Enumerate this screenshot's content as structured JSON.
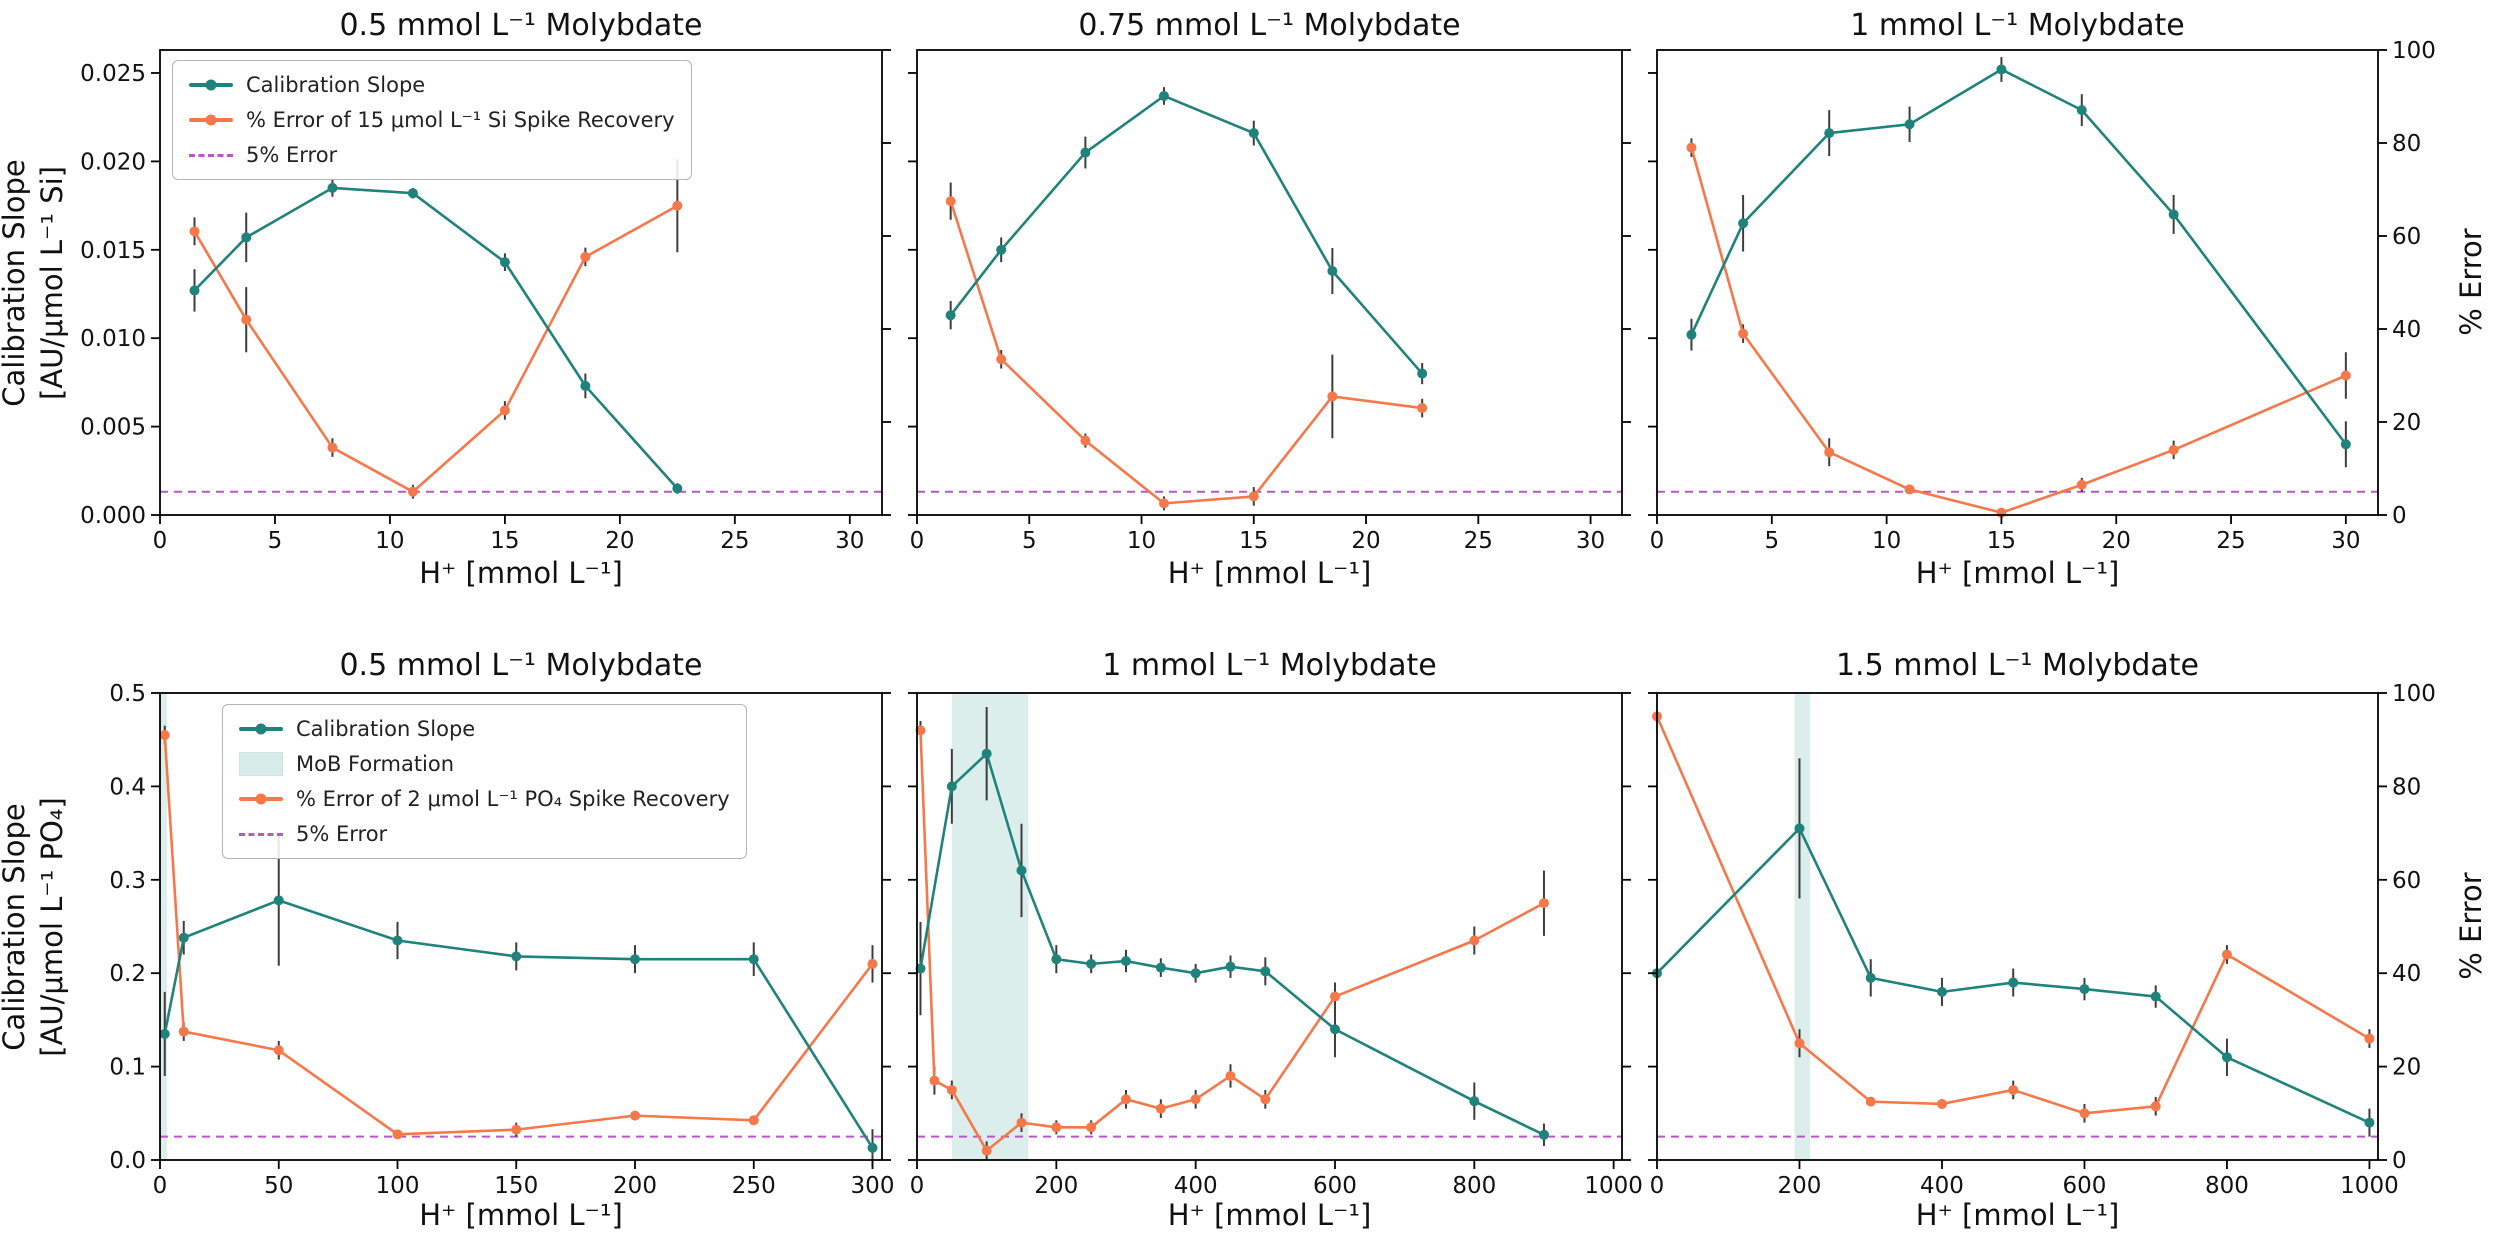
{
  "figure": {
    "colors": {
      "calibration_slope": "#1f837b",
      "spike_error": "#f5784b",
      "five_percent": "#bb55cc",
      "mob_formation": "#bfe0dc",
      "error_bar": "#3d3d3d",
      "axis": "#000000"
    }
  },
  "ylabels": {
    "row1_line1": "Calibration Slope",
    "row1_line2": "[AU/μmol L⁻¹ Si]",
    "row2_line1": "Calibration Slope",
    "row2_line2": "[AU/μmol L⁻¹ PO₄]",
    "right": "% Error"
  },
  "legends": [
    {
      "items": [
        {
          "label": "Calibration Slope",
          "swatch": "line-slope"
        },
        {
          "label": "% Error of 15 μmol L⁻¹  Si Spike Recovery",
          "swatch": "line-error"
        },
        {
          "label": "5% Error",
          "swatch": "dashed"
        }
      ]
    },
    {
      "items": [
        {
          "label": "Calibration Slope",
          "swatch": "line-slope"
        },
        {
          "label": "MoB Formation",
          "swatch": "patch"
        },
        {
          "label": "% Error of 2 μmol L⁻¹ PO₄ Spike Recovery",
          "swatch": "line-error"
        },
        {
          "label": "5% Error",
          "swatch": "dashed"
        }
      ]
    }
  ],
  "chart_data": [
    {
      "type": "line",
      "title": "0.5 mmol L⁻¹ Molybdate",
      "xlabel": "H⁺ [mmol L⁻¹]",
      "xlim": [
        0,
        31.4
      ],
      "xticks": [
        0,
        5,
        10,
        15,
        20,
        25,
        30
      ],
      "ylim_left": [
        0,
        0.0263
      ],
      "yticks_left": {
        "values": [
          0,
          0.005,
          0.01,
          0.015,
          0.02,
          0.025
        ],
        "labels": [
          "0.000",
          "0.005",
          "0.010",
          "0.015",
          "0.020",
          "0.025"
        ]
      },
      "left_tick_labels_visible": true,
      "ylim_right": [
        0,
        100
      ],
      "yticks_right": [
        0,
        20,
        40,
        60,
        80,
        100
      ],
      "right_tick_labels_visible": false,
      "five_percent_line": 5,
      "mob_region": null,
      "series": [
        {
          "name": "Calibration Slope",
          "axis": "left",
          "x": [
            1.5,
            3.75,
            7.5,
            11,
            15,
            18.5,
            22.5
          ],
          "y": [
            0.0127,
            0.0157,
            0.0185,
            0.0182,
            0.0143,
            0.0073,
            0.0015
          ],
          "yerr": [
            0.0012,
            0.0014,
            0.0005,
            0.0003,
            0.0005,
            0.0007,
            0.0003
          ]
        },
        {
          "name": "% Error of 15 umol/L Si Spike Recovery",
          "axis": "right",
          "x": [
            1.5,
            3.75,
            7.5,
            11,
            15,
            18.5,
            22.5
          ],
          "y": [
            61,
            42,
            14.5,
            5,
            22.5,
            55.5,
            66.5
          ],
          "yerr": [
            3,
            7,
            2,
            1.5,
            2,
            2,
            10
          ]
        }
      ]
    },
    {
      "type": "line",
      "title": "0.75 mmol L⁻¹ Molybdate",
      "xlabel": "H⁺ [mmol L⁻¹]",
      "xlim": [
        0,
        31.4
      ],
      "xticks": [
        0,
        5,
        10,
        15,
        20,
        25,
        30
      ],
      "ylim_left": [
        0,
        0.0263
      ],
      "yticks_left": {
        "values": [
          0,
          0.005,
          0.01,
          0.015,
          0.02,
          0.025
        ],
        "labels": [
          "0.000",
          "0.005",
          "0.010",
          "0.015",
          "0.020",
          "0.025"
        ]
      },
      "left_tick_labels_visible": false,
      "ylim_right": [
        0,
        100
      ],
      "yticks_right": [
        0,
        20,
        40,
        60,
        80,
        100
      ],
      "right_tick_labels_visible": false,
      "five_percent_line": 5,
      "mob_region": null,
      "series": [
        {
          "name": "Calibration Slope",
          "axis": "left",
          "x": [
            1.5,
            3.75,
            7.5,
            11,
            15,
            18.5,
            22.5
          ],
          "y": [
            0.0113,
            0.015,
            0.0205,
            0.0237,
            0.0216,
            0.0138,
            0.008
          ],
          "yerr": [
            0.0008,
            0.0007,
            0.0009,
            0.0005,
            0.0007,
            0.0013,
            0.0006
          ]
        },
        {
          "name": "% Error of 15 umol/L Si Spike Recovery",
          "axis": "right",
          "x": [
            1.5,
            3.75,
            7.5,
            11,
            15,
            18.5,
            22.5
          ],
          "y": [
            67.5,
            33.5,
            16,
            2.5,
            4,
            25.5,
            23
          ],
          "yerr": [
            4,
            2,
            1.5,
            1.5,
            2,
            9,
            2
          ]
        }
      ]
    },
    {
      "type": "line",
      "title": "1 mmol L⁻¹ Molybdate",
      "xlabel": "H⁺ [mmol L⁻¹]",
      "xlim": [
        0,
        31.4
      ],
      "xticks": [
        0,
        5,
        10,
        15,
        20,
        25,
        30
      ],
      "ylim_left": [
        0,
        0.0263
      ],
      "yticks_left": {
        "values": [
          0,
          0.005,
          0.01,
          0.015,
          0.02,
          0.025
        ],
        "labels": [
          "0.000",
          "0.005",
          "0.010",
          "0.015",
          "0.020",
          "0.025"
        ]
      },
      "left_tick_labels_visible": false,
      "ylim_right": [
        0,
        100
      ],
      "yticks_right": [
        0,
        20,
        40,
        60,
        80,
        100
      ],
      "right_tick_labels_visible": true,
      "five_percent_line": 5,
      "mob_region": null,
      "series": [
        {
          "name": "Calibration Slope",
          "axis": "left",
          "x": [
            1.5,
            3.75,
            7.5,
            11,
            15,
            18.5,
            22.5,
            30
          ],
          "y": [
            0.0102,
            0.0165,
            0.0216,
            0.0221,
            0.0252,
            0.0229,
            0.017,
            0.004
          ],
          "yerr": [
            0.0009,
            0.0016,
            0.0013,
            0.001,
            0.0007,
            0.0009,
            0.0011,
            0.0013
          ]
        },
        {
          "name": "% Error of 15 umol/L Si Spike Recovery",
          "axis": "right",
          "x": [
            1.5,
            3.75,
            7.5,
            11,
            15,
            18.5,
            22.5,
            30
          ],
          "y": [
            79,
            39,
            13.5,
            5.5,
            0.5,
            6.5,
            14,
            30
          ],
          "yerr": [
            2,
            2,
            3,
            1,
            1,
            1.5,
            2,
            5
          ]
        }
      ]
    },
    {
      "type": "line",
      "title": "0.5 mmol L⁻¹ Molybdate",
      "xlabel": "H⁺ [mmol L⁻¹]",
      "xlim": [
        0,
        304
      ],
      "xticks": [
        0,
        50,
        100,
        150,
        200,
        250,
        300
      ],
      "ylim_left": [
        0,
        0.5
      ],
      "yticks_left": {
        "values": [
          0,
          0.1,
          0.2,
          0.3,
          0.4,
          0.5
        ],
        "labels": [
          "0.0",
          "0.1",
          "0.2",
          "0.3",
          "0.4",
          "0.5"
        ]
      },
      "left_tick_labels_visible": true,
      "ylim_right": [
        0,
        100
      ],
      "yticks_right": [
        0,
        20,
        40,
        60,
        80,
        100
      ],
      "right_tick_labels_visible": false,
      "five_percent_line": 5,
      "mob_region": [
        0,
        3
      ],
      "series": [
        {
          "name": "Calibration Slope",
          "axis": "left",
          "x": [
            2,
            10,
            50,
            100,
            150,
            200,
            250,
            300
          ],
          "y": [
            0.135,
            0.238,
            0.278,
            0.235,
            0.218,
            0.215,
            0.215,
            0.013
          ],
          "yerr": [
            0.045,
            0.018,
            0.07,
            0.02,
            0.015,
            0.015,
            0.018,
            0.02
          ]
        },
        {
          "name": "% Error of 2 umol/L PO4 Spike Recovery",
          "axis": "right",
          "x": [
            2,
            10,
            50,
            100,
            150,
            200,
            250,
            300
          ],
          "y": [
            91,
            27.5,
            23.5,
            5.5,
            6.5,
            9.5,
            8.5,
            42
          ],
          "yerr": [
            2,
            2,
            2,
            1,
            1.5,
            1,
            1,
            4
          ]
        }
      ]
    },
    {
      "type": "line",
      "title": "1 mmol L⁻¹ Molybdate",
      "xlabel": "H⁺ [mmol L⁻¹]",
      "xlim": [
        0,
        1012
      ],
      "xticks": [
        0,
        200,
        400,
        600,
        800,
        1000
      ],
      "ylim_left": [
        0,
        0.5
      ],
      "yticks_left": {
        "values": [
          0,
          0.1,
          0.2,
          0.3,
          0.4,
          0.5
        ],
        "labels": [
          "0.0",
          "0.1",
          "0.2",
          "0.3",
          "0.4",
          "0.5"
        ]
      },
      "left_tick_labels_visible": false,
      "ylim_right": [
        0,
        100
      ],
      "yticks_right": [
        0,
        20,
        40,
        60,
        80,
        100
      ],
      "right_tick_labels_visible": false,
      "five_percent_line": 5,
      "mob_region": [
        50,
        160
      ],
      "series": [
        {
          "name": "Calibration Slope",
          "axis": "left",
          "x": [
            5,
            50,
            100,
            150,
            200,
            250,
            300,
            350,
            400,
            450,
            500,
            600,
            800,
            900
          ],
          "y": [
            0.205,
            0.4,
            0.435,
            0.31,
            0.215,
            0.21,
            0.213,
            0.206,
            0.2,
            0.207,
            0.202,
            0.14,
            0.063,
            0.027
          ],
          "yerr": [
            0.05,
            0.04,
            0.05,
            0.05,
            0.015,
            0.01,
            0.012,
            0.01,
            0.01,
            0.012,
            0.015,
            0.03,
            0.02,
            0.012
          ]
        },
        {
          "name": "% Error of 2 umol/L PO4 Spike Recovery",
          "axis": "right",
          "x": [
            5,
            25,
            50,
            100,
            150,
            200,
            250,
            300,
            350,
            400,
            450,
            500,
            600,
            800,
            900
          ],
          "y": [
            92,
            17,
            15,
            2,
            8,
            7,
            7,
            13,
            11,
            13,
            18,
            13,
            35,
            47,
            55
          ],
          "yerr": [
            2,
            3,
            2,
            2,
            2,
            1.5,
            1.5,
            2,
            2,
            2,
            2.5,
            2,
            3,
            3,
            7
          ]
        }
      ]
    },
    {
      "type": "line",
      "title": "1.5 mmol L⁻¹ Molybdate",
      "xlabel": "H⁺ [mmol L⁻¹]",
      "xlim": [
        0,
        1012
      ],
      "xticks": [
        0,
        200,
        400,
        600,
        800,
        1000
      ],
      "ylim_left": [
        0,
        0.5
      ],
      "yticks_left": {
        "values": [
          0,
          0.1,
          0.2,
          0.3,
          0.4,
          0.5
        ],
        "labels": [
          "0.0",
          "0.1",
          "0.2",
          "0.3",
          "0.4",
          "0.5"
        ]
      },
      "left_tick_labels_visible": false,
      "ylim_right": [
        0,
        100
      ],
      "yticks_right": [
        0,
        20,
        40,
        60,
        80,
        100
      ],
      "right_tick_labels_visible": true,
      "five_percent_line": 5,
      "mob_region": [
        193,
        215
      ],
      "series": [
        {
          "name": "Calibration Slope",
          "axis": "left",
          "x": [
            0,
            200,
            300,
            400,
            500,
            600,
            700,
            800,
            1000
          ],
          "y": [
            0.2,
            0.355,
            0.195,
            0.18,
            0.19,
            0.183,
            0.175,
            0.11,
            0.04
          ],
          "yerr": [
            0,
            0.075,
            0.02,
            0.015,
            0.015,
            0.012,
            0.012,
            0.02,
            0.015
          ]
        },
        {
          "name": "% Error of 2 umol/L PO4 Spike Recovery",
          "axis": "right",
          "x": [
            0,
            200,
            300,
            400,
            500,
            600,
            700,
            800,
            1000
          ],
          "y": [
            95,
            25,
            12.5,
            12,
            15,
            10,
            11.5,
            44,
            26
          ],
          "yerr": [
            0,
            3,
            1,
            1,
            2,
            2,
            2,
            2,
            2
          ]
        }
      ]
    }
  ]
}
